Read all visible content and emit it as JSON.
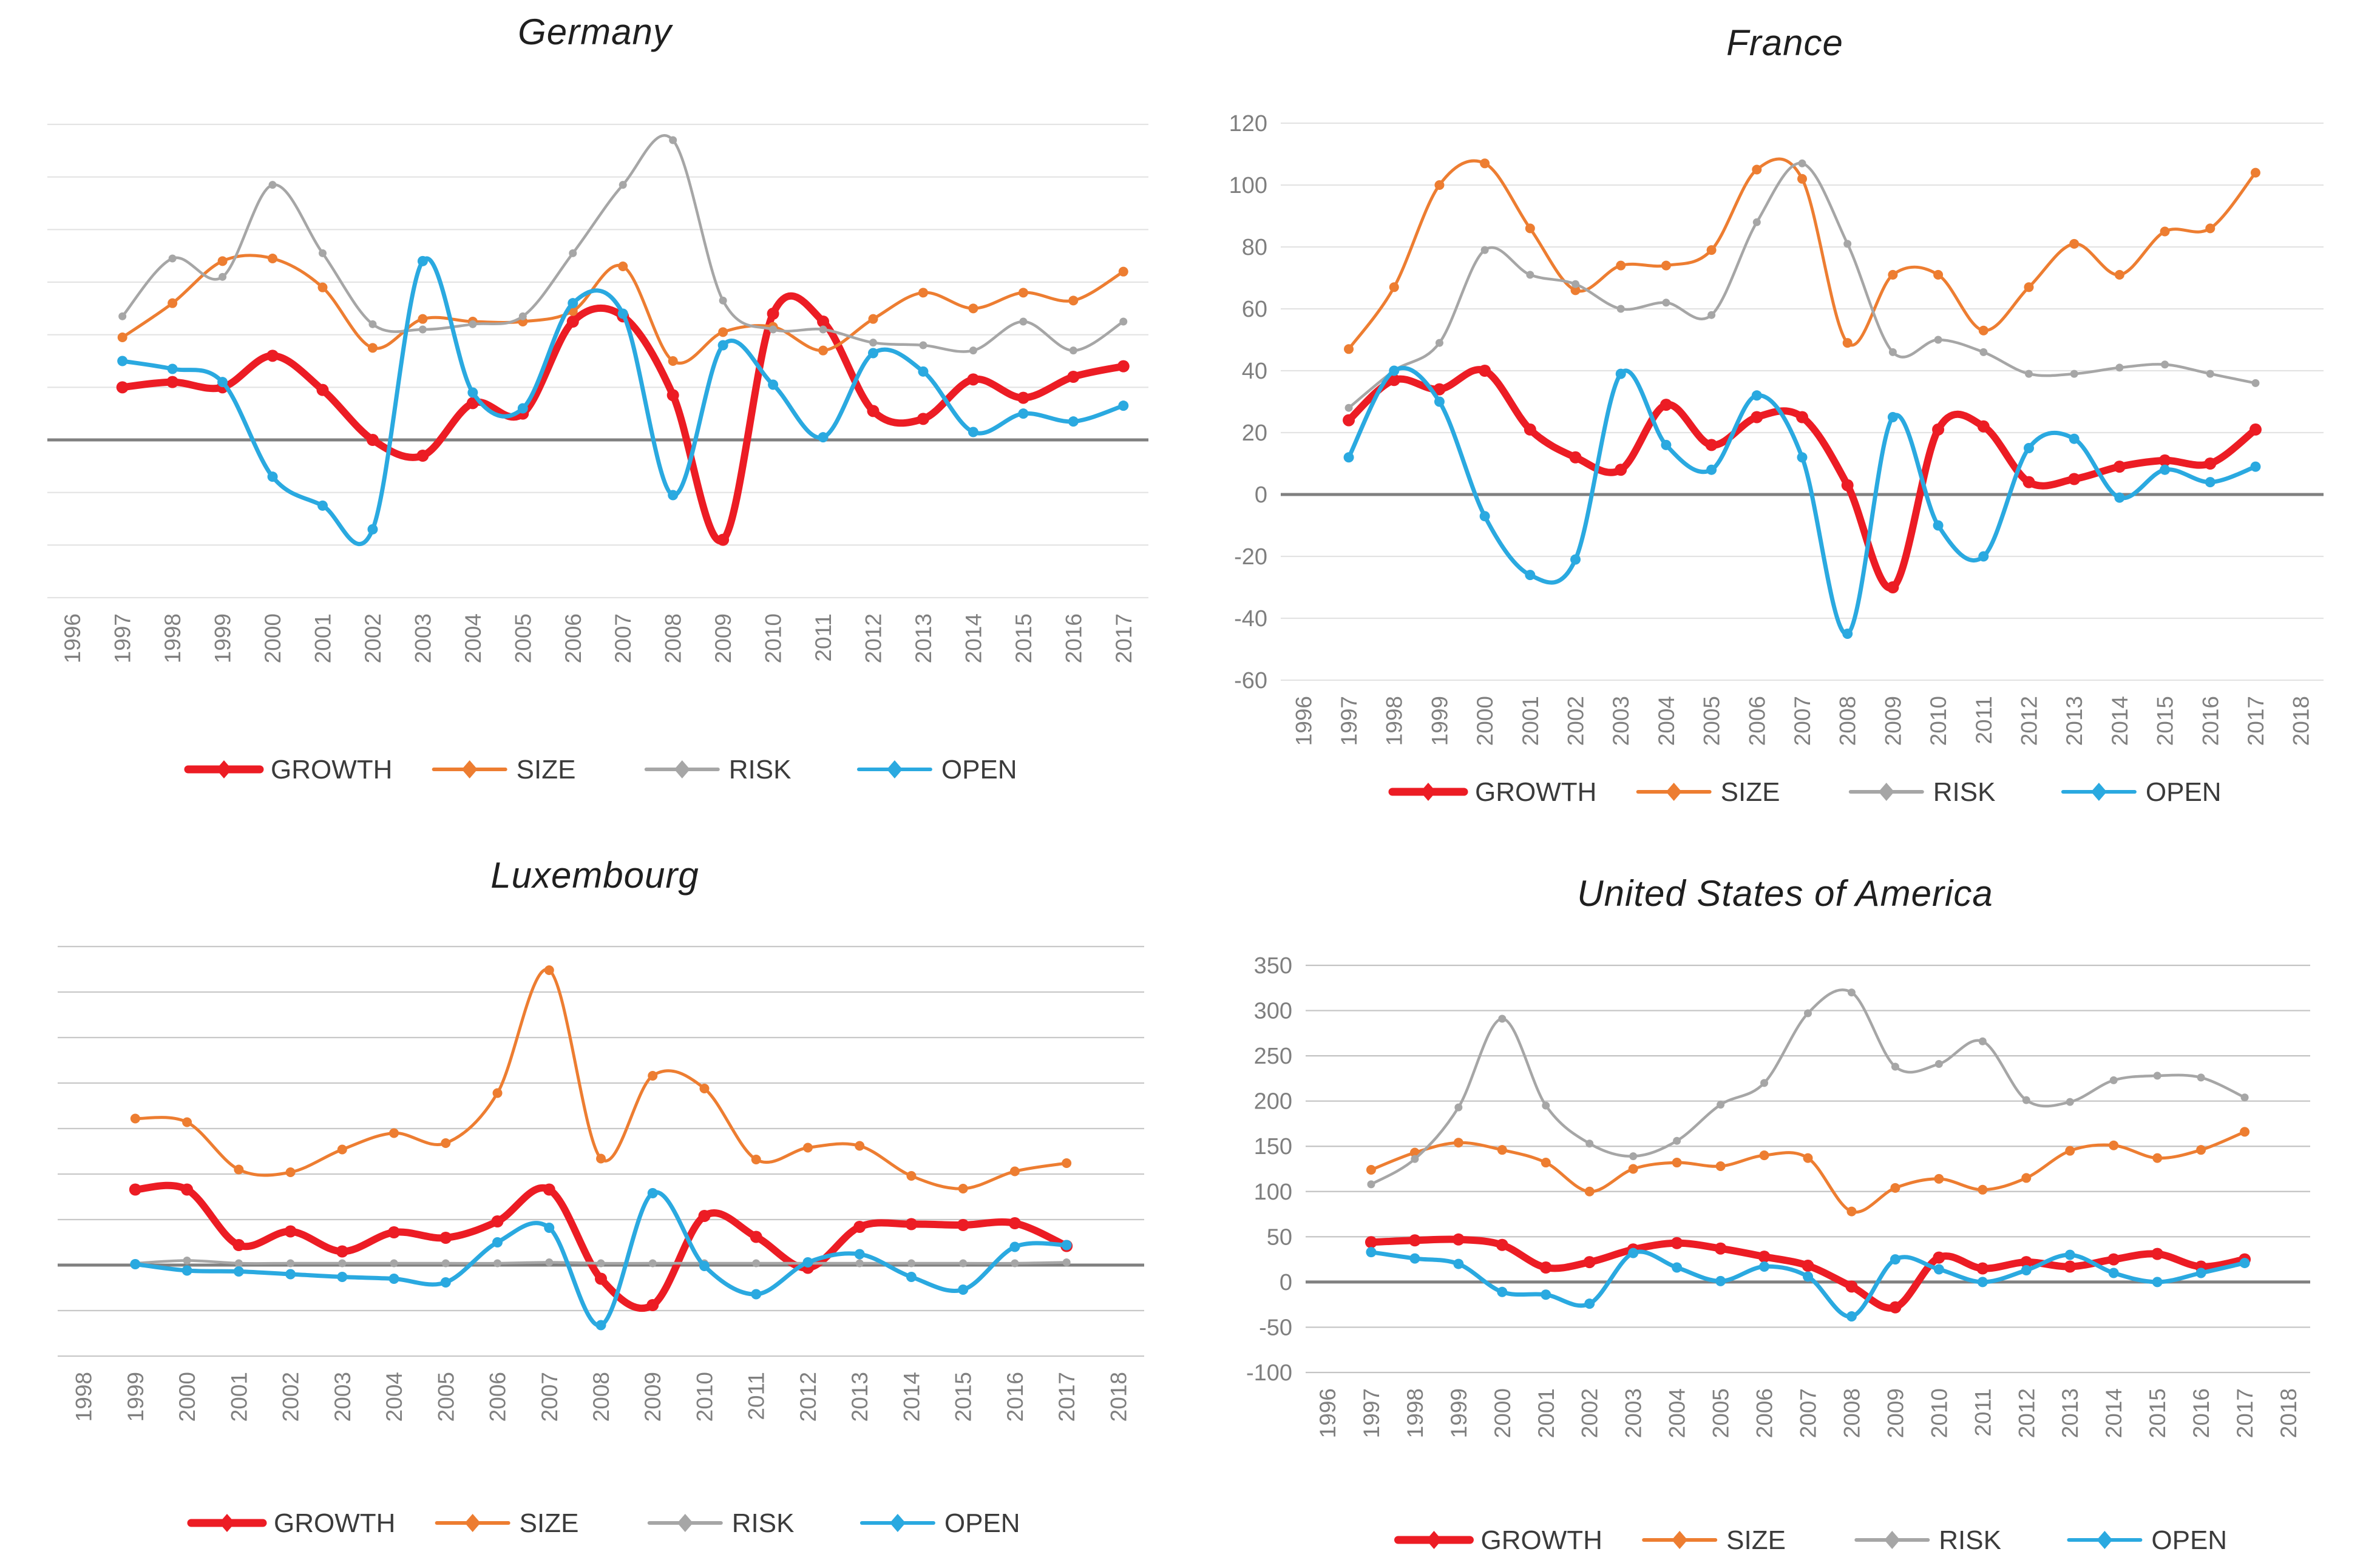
{
  "page": {
    "background": "#ffffff"
  },
  "legend": {
    "items": [
      "GROWTH",
      "SIZE",
      "RISK",
      "OPEN"
    ]
  },
  "series_colors": {
    "GROWTH": "#ec1c24",
    "SIZE": "#ed7d31",
    "RISK": "#a6a6a6",
    "OPEN": "#2aa9e0"
  },
  "axis_colors": {
    "tick_label": "#7f7f7f",
    "zero_line": "#808080"
  },
  "chart_data": [
    {
      "id": "germany",
      "type": "line",
      "title": "Germany",
      "x_axis_labels": [
        "1996",
        "1997",
        "1998",
        "1999",
        "2000",
        "2001",
        "2002",
        "2003",
        "2004",
        "2005",
        "2006",
        "2007",
        "2008",
        "2009",
        "2010",
        "2011",
        "2012",
        "2013",
        "2014",
        "2015",
        "2016",
        "2017"
      ],
      "x": [
        1997,
        1998,
        1999,
        2000,
        2001,
        2002,
        2003,
        2004,
        2005,
        2006,
        2007,
        2008,
        2009,
        2010,
        2011,
        2012,
        2013,
        2014,
        2015,
        2016,
        2017
      ],
      "ylim": [
        -60,
        120
      ],
      "y_step": 20,
      "show_y_labels": false,
      "grid": true,
      "grid_color": "#e3e3e3",
      "legend_position": "bottom",
      "series": [
        {
          "name": "GROWTH",
          "color": "#ec1c24",
          "values": [
            20,
            22,
            20,
            32,
            19,
            0,
            -6,
            14,
            10,
            45,
            47,
            17,
            -38,
            48,
            45,
            11,
            8,
            23,
            16,
            24,
            28
          ]
        },
        {
          "name": "SIZE",
          "color": "#ed7d31",
          "values": [
            39,
            52,
            68,
            69,
            58,
            35,
            46,
            45,
            45,
            49,
            66,
            30,
            41,
            43,
            34,
            46,
            56,
            50,
            56,
            53,
            64
          ]
        },
        {
          "name": "RISK",
          "color": "#a6a6a6",
          "values": [
            47,
            69,
            62,
            97,
            71,
            44,
            42,
            44,
            47,
            71,
            97,
            114,
            53,
            42,
            42,
            37,
            36,
            34,
            45,
            34,
            45
          ]
        },
        {
          "name": "OPEN",
          "color": "#2aa9e0",
          "values": [
            30,
            27,
            22,
            -14,
            -25,
            -34,
            68,
            18,
            12,
            52,
            48,
            -21,
            36,
            21,
            1,
            33,
            26,
            3,
            10,
            7,
            13
          ]
        }
      ]
    },
    {
      "id": "france",
      "type": "line",
      "title": "France",
      "x_axis_labels": [
        "1996",
        "1997",
        "1998",
        "1999",
        "2000",
        "2001",
        "2002",
        "2003",
        "2004",
        "2005",
        "2006",
        "2007",
        "2008",
        "2009",
        "2010",
        "2011",
        "2012",
        "2013",
        "2014",
        "2015",
        "2016",
        "2017",
        "2018"
      ],
      "x": [
        1997,
        1998,
        1999,
        2000,
        2001,
        2002,
        2003,
        2004,
        2005,
        2006,
        2007,
        2008,
        2009,
        2010,
        2011,
        2012,
        2013,
        2014,
        2015,
        2016,
        2017
      ],
      "ylim": [
        -60,
        120
      ],
      "y_step": 20,
      "show_y_labels": true,
      "grid": true,
      "grid_color": "#e3e3e3",
      "legend_position": "bottom",
      "y_tick_labels": [
        "120",
        "100",
        "80",
        "60",
        "40",
        "20",
        "0",
        "-20",
        "-40",
        "-60"
      ],
      "series": [
        {
          "name": "GROWTH",
          "color": "#ec1c24",
          "values": [
            24,
            37,
            34,
            40,
            21,
            12,
            8,
            29,
            16,
            25,
            25,
            3,
            -30,
            21,
            22,
            4,
            5,
            9,
            11,
            10,
            21
          ]
        },
        {
          "name": "SIZE",
          "color": "#ed7d31",
          "values": [
            47,
            67,
            100,
            107,
            86,
            66,
            74,
            74,
            79,
            105,
            102,
            49,
            71,
            71,
            53,
            67,
            81,
            71,
            85,
            86,
            104
          ]
        },
        {
          "name": "RISK",
          "color": "#a6a6a6",
          "values": [
            28,
            40,
            49,
            79,
            71,
            68,
            60,
            62,
            58,
            88,
            107,
            81,
            46,
            50,
            46,
            39,
            39,
            41,
            42,
            39,
            36
          ]
        },
        {
          "name": "OPEN",
          "color": "#2aa9e0",
          "values": [
            12,
            40,
            30,
            -7,
            -26,
            -21,
            39,
            16,
            8,
            32,
            12,
            -45,
            25,
            -10,
            -20,
            15,
            18,
            -1,
            8,
            4,
            9
          ]
        }
      ]
    },
    {
      "id": "luxembourg",
      "type": "line",
      "title": "Luxembourg",
      "x_axis_labels": [
        "1998",
        "1999",
        "2000",
        "2001",
        "2002",
        "2003",
        "2004",
        "2005",
        "2006",
        "2007",
        "2008",
        "2009",
        "2010",
        "2011",
        "2012",
        "2013",
        "2014",
        "2015",
        "2016",
        "2017",
        "2018"
      ],
      "x": [
        1999,
        2000,
        2001,
        2002,
        2003,
        2004,
        2005,
        2006,
        2007,
        2008,
        2009,
        2010,
        2011,
        2012,
        2013,
        2014,
        2015,
        2016,
        2017
      ],
      "ylim": [
        -100,
        350
      ],
      "y_step": 50,
      "show_y_labels": false,
      "grid": true,
      "grid_color": "#c8c8c8",
      "legend_position": "bottom",
      "series": [
        {
          "name": "GROWTH",
          "color": "#ec1c24",
          "values": [
            83,
            83,
            22,
            37,
            15,
            36,
            30,
            48,
            83,
            -15,
            -44,
            54,
            31,
            -3,
            42,
            45,
            44,
            46,
            21
          ]
        },
        {
          "name": "SIZE",
          "color": "#ed7d31",
          "values": [
            161,
            157,
            105,
            102,
            127,
            145,
            134,
            189,
            324,
            117,
            208,
            194,
            116,
            129,
            131,
            98,
            84,
            103,
            112
          ]
        },
        {
          "name": "RISK",
          "color": "#a6a6a6",
          "values": [
            2,
            5,
            2,
            2,
            2,
            2,
            2,
            2,
            3,
            2,
            2,
            2,
            2,
            2,
            2,
            2,
            2,
            2,
            3
          ]
        },
        {
          "name": "OPEN",
          "color": "#2aa9e0",
          "values": [
            1,
            -6,
            -7,
            -10,
            -13,
            -15,
            -19,
            25,
            41,
            -66,
            79,
            -1,
            -32,
            3,
            12,
            -13,
            -27,
            20,
            22
          ]
        }
      ]
    },
    {
      "id": "usa",
      "type": "line",
      "title": "United States of America",
      "x_axis_labels": [
        "1996",
        "1997",
        "1998",
        "1999",
        "2000",
        "2001",
        "2002",
        "2003",
        "2004",
        "2005",
        "2006",
        "2007",
        "2008",
        "2009",
        "2010",
        "2011",
        "2012",
        "2013",
        "2014",
        "2015",
        "2016",
        "2017",
        "2018"
      ],
      "x": [
        1997,
        1998,
        1999,
        2000,
        2001,
        2002,
        2003,
        2004,
        2005,
        2006,
        2007,
        2008,
        2009,
        2010,
        2011,
        2012,
        2013,
        2014,
        2015,
        2016,
        2017
      ],
      "ylim": [
        -100,
        350
      ],
      "y_step": 50,
      "show_y_labels": true,
      "grid": true,
      "grid_color": "#c3c3c3",
      "legend_position": "bottom",
      "y_tick_labels": [
        "350",
        "300",
        "250",
        "200",
        "150",
        "100",
        "50",
        "0",
        "-50",
        "-100"
      ],
      "series": [
        {
          "name": "GROWTH",
          "color": "#ec1c24",
          "values": [
            44,
            46,
            47,
            41,
            16,
            22,
            36,
            43,
            37,
            28,
            18,
            -5,
            -28,
            27,
            15,
            22,
            17,
            25,
            31,
            17,
            25
          ]
        },
        {
          "name": "SIZE",
          "color": "#ed7d31",
          "values": [
            124,
            143,
            154,
            146,
            132,
            100,
            125,
            132,
            128,
            140,
            137,
            78,
            104,
            114,
            102,
            115,
            145,
            151,
            137,
            146,
            166
          ]
        },
        {
          "name": "RISK",
          "color": "#a6a6a6",
          "values": [
            108,
            136,
            193,
            291,
            195,
            153,
            139,
            156,
            196,
            220,
            297,
            320,
            238,
            241,
            266,
            201,
            199,
            223,
            228,
            226,
            204
          ]
        },
        {
          "name": "OPEN",
          "color": "#2aa9e0",
          "values": [
            33,
            26,
            20,
            -11,
            -14,
            -24,
            32,
            16,
            1,
            17,
            6,
            -38,
            25,
            14,
            0,
            13,
            30,
            10,
            0,
            10,
            21
          ]
        }
      ]
    }
  ]
}
